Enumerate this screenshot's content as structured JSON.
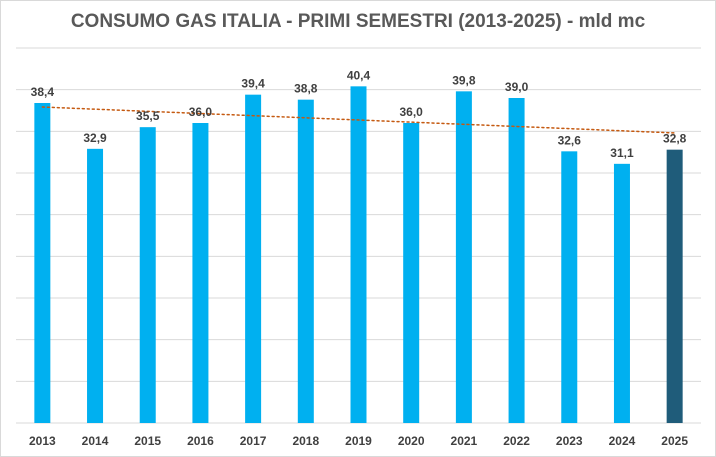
{
  "chart_data": {
    "type": "bar",
    "title": "CONSUMO GAS ITALIA - PRIMI SEMESTRI (2013-2025) - mld mc",
    "xlabel": "",
    "ylabel": "",
    "categories": [
      "2013",
      "2014",
      "2015",
      "2016",
      "2017",
      "2018",
      "2019",
      "2020",
      "2021",
      "2022",
      "2023",
      "2024",
      "2025"
    ],
    "values": [
      38.4,
      32.9,
      35.5,
      36.0,
      39.4,
      38.8,
      40.4,
      36.0,
      39.8,
      39.0,
      32.6,
      31.1,
      32.8
    ],
    "value_labels": [
      "38,4",
      "32,9",
      "35,5",
      "36,0",
      "39,4",
      "38,8",
      "40,4",
      "36,0",
      "39,8",
      "39,0",
      "32,6",
      "31,1",
      "32,8"
    ],
    "ylim": [
      0,
      45
    ],
    "grid": true,
    "trendline": {
      "type": "linear",
      "style": "dotted",
      "color": "#c55a11"
    },
    "colors": {
      "bar": "#00b0f0",
      "highlight_bar": "#1f5c7a",
      "highlight_category": "2025"
    }
  }
}
